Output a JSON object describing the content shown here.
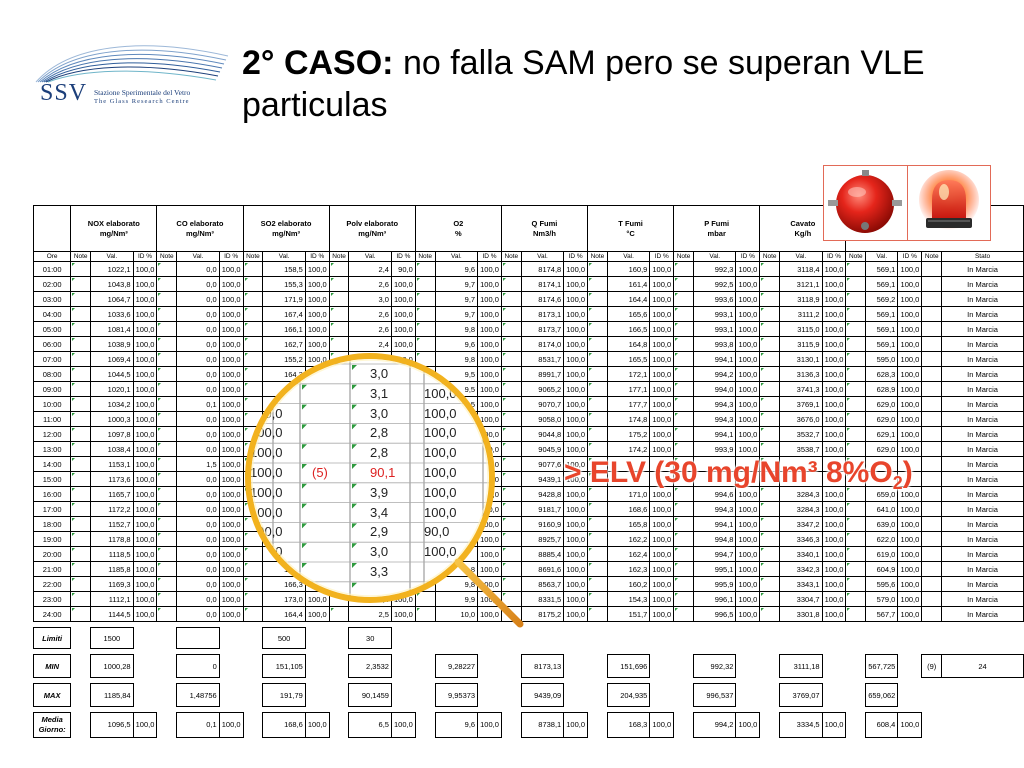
{
  "logo": {
    "abbr": "SSV",
    "name": "Stazione Sperimentale del Vetro",
    "subtitle": "The Glass Research Centre"
  },
  "title": {
    "bold": "2° CASO:",
    "rest": " no falla SAM pero se superan VLE particulas"
  },
  "alarm_icons": [
    "alarm-bell-icon",
    "siren-light-icon"
  ],
  "colors": {
    "elv_text": "#e8452c",
    "alarm_border": "#e26a57",
    "lens_rim": "#f2b21e",
    "note_marker": "#2e9a3e"
  },
  "table": {
    "groups": [
      {
        "name": "NOX elaborato",
        "unit": "mg/Nm³"
      },
      {
        "name": "CO elaborato",
        "unit": "mg/Nm³"
      },
      {
        "name": "SO2 elaborato",
        "unit": "mg/Nm³"
      },
      {
        "name": "Polv elaborato",
        "unit": "mg/Nm³"
      },
      {
        "name": "O2",
        "unit": "%"
      },
      {
        "name": "Q Fumi",
        "unit": "Nm3/h"
      },
      {
        "name": "T Fumi",
        "unit": "°C"
      },
      {
        "name": "P Fumi",
        "unit": "mbar"
      },
      {
        "name": "Cavato",
        "unit": "Kg/h"
      }
    ],
    "sub": {
      "hour": "Ore",
      "note": "Note",
      "val": "Val.",
      "id": "ID %",
      "status": "Stato"
    },
    "rows": [
      {
        "h": "01:00",
        "v": [
          "1022,1",
          "100,0",
          "0,0",
          "100,0",
          "158,5",
          "100,0",
          "2,4",
          "90,0",
          "9,6",
          "100,0",
          "8174,8",
          "100,0",
          "160,9",
          "100,0",
          "992,3",
          "100,0",
          "3118,4",
          "100,0",
          "569,1",
          "100,0"
        ],
        "s": "In Marcia"
      },
      {
        "h": "02:00",
        "v": [
          "1043,8",
          "100,0",
          "0,0",
          "100,0",
          "155,3",
          "100,0",
          "2,6",
          "100,0",
          "9,7",
          "100,0",
          "8174,1",
          "100,0",
          "161,4",
          "100,0",
          "992,5",
          "100,0",
          "3121,1",
          "100,0",
          "569,1",
          "100,0"
        ],
        "s": "In Marcia"
      },
      {
        "h": "03:00",
        "v": [
          "1064,7",
          "100,0",
          "0,0",
          "100,0",
          "171,9",
          "100,0",
          "3,0",
          "100,0",
          "9,7",
          "100,0",
          "8174,6",
          "100,0",
          "164,4",
          "100,0",
          "993,6",
          "100,0",
          "3118,9",
          "100,0",
          "569,2",
          "100,0"
        ],
        "s": "In Marcia"
      },
      {
        "h": "04:00",
        "v": [
          "1033,6",
          "100,0",
          "0,0",
          "100,0",
          "167,4",
          "100,0",
          "2,6",
          "100,0",
          "9,7",
          "100,0",
          "8173,1",
          "100,0",
          "165,6",
          "100,0",
          "993,1",
          "100,0",
          "3111,2",
          "100,0",
          "569,1",
          "100,0"
        ],
        "s": "In Marcia"
      },
      {
        "h": "05:00",
        "v": [
          "1081,4",
          "100,0",
          "0,0",
          "100,0",
          "166,1",
          "100,0",
          "2,6",
          "100,0",
          "9,8",
          "100,0",
          "8173,7",
          "100,0",
          "166,5",
          "100,0",
          "993,1",
          "100,0",
          "3115,0",
          "100,0",
          "569,1",
          "100,0"
        ],
        "s": "In Marcia"
      },
      {
        "h": "06:00",
        "v": [
          "1038,9",
          "100,0",
          "0,0",
          "100,0",
          "162,7",
          "100,0",
          "2,4",
          "100,0",
          "9,6",
          "100,0",
          "8174,0",
          "100,0",
          "164,8",
          "100,0",
          "993,8",
          "100,0",
          "3115,9",
          "100,0",
          "569,1",
          "100,0"
        ],
        "s": "In Marcia"
      },
      {
        "h": "07:00",
        "v": [
          "1069,4",
          "100,0",
          "0,0",
          "100,0",
          "155,2",
          "100,0",
          "2,6",
          "100,0",
          "9,8",
          "100,0",
          "8531,7",
          "100,0",
          "165,5",
          "100,0",
          "994,1",
          "100,0",
          "3130,1",
          "100,0",
          "595,0",
          "100,0"
        ],
        "s": "In Marcia"
      },
      {
        "h": "08:00",
        "v": [
          "1044,5",
          "100,0",
          "0,0",
          "100,0",
          "164,3",
          "100,0",
          "",
          "",
          "9,5",
          "100,0",
          "8991,7",
          "100,0",
          "172,1",
          "100,0",
          "994,2",
          "100,0",
          "3136,3",
          "100,0",
          "628,3",
          "100,0"
        ],
        "s": "In Marcia"
      },
      {
        "h": "09:00",
        "v": [
          "1020,1",
          "100,0",
          "0,0",
          "100,0",
          "",
          "",
          "",
          "",
          "9,5",
          "100,0",
          "9065,2",
          "100,0",
          "177,1",
          "100,0",
          "994,0",
          "100,0",
          "3741,3",
          "100,0",
          "628,9",
          "100,0"
        ],
        "s": "In Marcia"
      },
      {
        "h": "10:00",
        "v": [
          "1034,2",
          "100,0",
          "0,1",
          "100,0",
          "",
          "",
          "",
          "",
          "9,5",
          "100,0",
          "9070,7",
          "100,0",
          "177,7",
          "100,0",
          "994,3",
          "100,0",
          "3769,1",
          "100,0",
          "629,0",
          "100,0"
        ],
        "s": "In Marcia"
      },
      {
        "h": "11:00",
        "v": [
          "1000,3",
          "100,0",
          "0,0",
          "100,0",
          "",
          "",
          "",
          "",
          "",
          "100,0",
          "9058,0",
          "100,0",
          "174,8",
          "100,0",
          "994,3",
          "100,0",
          "3676,0",
          "100,0",
          "629,0",
          "100,0"
        ],
        "s": "In Marcia"
      },
      {
        "h": "12:00",
        "v": [
          "1097,8",
          "100,0",
          "0,0",
          "100,0",
          "",
          "",
          "",
          "",
          "",
          "100,0",
          "9044,8",
          "100,0",
          "175,2",
          "100,0",
          "994,1",
          "100,0",
          "3532,7",
          "100,0",
          "629,1",
          "100,0"
        ],
        "s": "In Marcia"
      },
      {
        "h": "13:00",
        "v": [
          "1038,4",
          "100,0",
          "0,0",
          "100,0",
          "",
          "",
          "",
          "",
          "",
          "100,0",
          "9045,9",
          "100,0",
          "174,2",
          "100,0",
          "993,9",
          "100,0",
          "3538,7",
          "100,0",
          "629,0",
          "100,0"
        ],
        "s": "In Marcia"
      },
      {
        "h": "14:00",
        "v": [
          "1153,1",
          "100,0",
          "1,5",
          "100,0",
          "",
          "",
          "",
          "",
          "",
          "100,0",
          "9077,6",
          "100,0",
          "",
          "",
          "",
          "",
          "",
          "",
          "",
          ""
        ],
        "s": "In Marcia"
      },
      {
        "h": "15:00",
        "v": [
          "1173,6",
          "100,0",
          "0,0",
          "100,0",
          "",
          "",
          "",
          "",
          "",
          "100,0",
          "9439,1",
          "100,0",
          "",
          "",
          "",
          "",
          "",
          "",
          "",
          ""
        ],
        "s": "In Marcia"
      },
      {
        "h": "16:00",
        "v": [
          "1165,7",
          "100,0",
          "0,0",
          "100,0",
          "",
          "",
          "",
          "",
          "",
          "100,0",
          "9428,8",
          "100,0",
          "171,0",
          "100,0",
          "994,6",
          "100,0",
          "3284,3",
          "100,0",
          "659,0",
          "100,0"
        ],
        "s": "In Marcia"
      },
      {
        "h": "17:00",
        "v": [
          "1172,2",
          "100,0",
          "0,0",
          "100,0",
          "",
          "",
          "",
          "",
          "",
          "100,0",
          "9181,7",
          "100,0",
          "168,6",
          "100,0",
          "994,3",
          "100,0",
          "3284,3",
          "100,0",
          "641,0",
          "100,0"
        ],
        "s": "In Marcia"
      },
      {
        "h": "18:00",
        "v": [
          "1152,7",
          "100,0",
          "0,0",
          "100,0",
          "",
          "",
          "",
          "",
          "",
          "100,0",
          "9160,9",
          "100,0",
          "165,8",
          "100,0",
          "994,1",
          "100,0",
          "3347,2",
          "100,0",
          "639,0",
          "100,0"
        ],
        "s": "In Marcia"
      },
      {
        "h": "19:00",
        "v": [
          "1178,8",
          "100,0",
          "0,0",
          "100,0",
          "",
          "",
          "",
          "",
          "",
          "100,0",
          "8925,7",
          "100,0",
          "162,2",
          "100,0",
          "994,8",
          "100,0",
          "3346,3",
          "100,0",
          "622,0",
          "100,0"
        ],
        "s": "In Marcia"
      },
      {
        "h": "20:00",
        "v": [
          "1118,5",
          "100,0",
          "0,0",
          "100,0",
          "",
          "",
          "",
          "",
          "",
          "100,0",
          "8885,4",
          "100,0",
          "162,4",
          "100,0",
          "994,7",
          "100,0",
          "3340,1",
          "100,0",
          "619,0",
          "100,0"
        ],
        "s": "In Marcia"
      },
      {
        "h": "21:00",
        "v": [
          "1185,8",
          "100,0",
          "0,0",
          "100,0",
          "169,1",
          "",
          "",
          "",
          "9,8",
          "100,0",
          "8691,6",
          "100,0",
          "162,3",
          "100,0",
          "995,1",
          "100,0",
          "3342,3",
          "100,0",
          "604,9",
          "100,0"
        ],
        "s": "In Marcia"
      },
      {
        "h": "22:00",
        "v": [
          "1169,3",
          "100,0",
          "0,0",
          "100,0",
          "166,3",
          "100,0",
          "2,8",
          "100,0",
          "9,8",
          "100,0",
          "8563,7",
          "100,0",
          "160,2",
          "100,0",
          "995,9",
          "100,0",
          "3343,1",
          "100,0",
          "595,6",
          "100,0"
        ],
        "s": "In Marcia"
      },
      {
        "h": "23:00",
        "v": [
          "1112,1",
          "100,0",
          "0,0",
          "100,0",
          "173,0",
          "100,0",
          "2,4",
          "100,0",
          "9,9",
          "100,0",
          "8331,5",
          "100,0",
          "154,3",
          "100,0",
          "996,1",
          "100,0",
          "3304,7",
          "100,0",
          "579,0",
          "100,0"
        ],
        "s": "In Marcia"
      },
      {
        "h": "24:00",
        "v": [
          "1144,5",
          "100,0",
          "0,0",
          "100,0",
          "164,4",
          "100,0",
          "2,5",
          "100,0",
          "10,0",
          "100,0",
          "8175,2",
          "100,0",
          "151,7",
          "100,0",
          "996,5",
          "100,0",
          "3301,8",
          "100,0",
          "567,7",
          "100,0"
        ],
        "s": "In Marcia"
      }
    ],
    "limits": {
      "label": "Limiti",
      "nox": "1500",
      "so2": "500",
      "polv": "30"
    },
    "min": {
      "label": "MIN",
      "vals": [
        "1000,28",
        "0",
        "151,105",
        "2,3532",
        "9,28227",
        "8173,13",
        "151,696",
        "992,32",
        "3111,18",
        "567,725"
      ],
      "extra": "(9)",
      "last": "24"
    },
    "max": {
      "label": "MAX",
      "vals": [
        "1185,84",
        "1,48756",
        "191,79",
        "90,1459",
        "9,95373",
        "9439,09",
        "204,935",
        "996,537",
        "3769,07",
        "659,062"
      ]
    },
    "avg": {
      "label": "Media Giorno:",
      "vals": [
        "1096,5",
        "100,0",
        "0,1",
        "100,0",
        "168,6",
        "100,0",
        "6,5",
        "100,0",
        "9,6",
        "100,0",
        "8738,1",
        "100,0",
        "168,3",
        "100,0",
        "994,2",
        "100,0",
        "3334,5",
        "100,0",
        "608,4",
        "100,0"
      ]
    }
  },
  "magnifier": {
    "col1": [
      "100,0",
      "100,0",
      "100,0",
      "100,0",
      "100,0",
      "100,0",
      "100,0",
      "100,0",
      "100,0"
    ],
    "col1_top": "0",
    "note": "(5)",
    "col2": [
      "3,0",
      "3,1",
      "3,0",
      "2,8",
      "2,8",
      "90,1",
      "3,9",
      "3,4",
      "2,9",
      "3,0",
      "3,3"
    ],
    "col3": [
      "100,0",
      "100,0",
      "100,0",
      "100,0",
      "100,0",
      "100,0",
      "100,0",
      "90,0",
      "100,0"
    ]
  },
  "annotation": {
    "elv_main": "> ELV (30 mg/Nm³ 8%O",
    "elv_sub": "2",
    "elv_close": ")"
  }
}
